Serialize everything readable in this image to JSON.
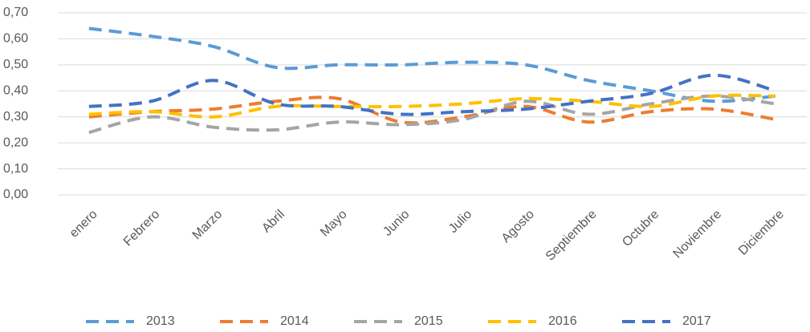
{
  "chart_data": {
    "type": "line",
    "categories": [
      "enero",
      "Febrero",
      "Marzo",
      "Abril",
      "Mayo",
      "Junio",
      "Julio",
      "Agosto",
      "Septiembre",
      "Octubre",
      "Noviembre",
      "Diciembre"
    ],
    "series": [
      {
        "name": "2013",
        "color": "#5b9bd5",
        "values": [
          0.64,
          0.61,
          0.57,
          0.49,
          0.5,
          0.5,
          0.51,
          0.5,
          0.44,
          0.4,
          0.36,
          0.38
        ]
      },
      {
        "name": "2014",
        "color": "#ed7d31",
        "values": [
          0.3,
          0.32,
          0.33,
          0.36,
          0.37,
          0.28,
          0.3,
          0.34,
          0.28,
          0.32,
          0.33,
          0.29
        ]
      },
      {
        "name": "2015",
        "color": "#a5a5a5",
        "values": [
          0.24,
          0.3,
          0.26,
          0.25,
          0.28,
          0.27,
          0.29,
          0.36,
          0.31,
          0.35,
          0.38,
          0.35
        ]
      },
      {
        "name": "2016",
        "color": "#ffc000",
        "values": [
          0.31,
          0.32,
          0.3,
          0.34,
          0.34,
          0.34,
          0.35,
          0.37,
          0.36,
          0.34,
          0.38,
          0.38
        ]
      },
      {
        "name": "2017",
        "color": "#4472c4",
        "values": [
          0.34,
          0.36,
          0.44,
          0.35,
          0.34,
          0.31,
          0.32,
          0.33,
          0.36,
          0.39,
          0.46,
          0.4
        ]
      }
    ],
    "ylim": [
      0,
      0.7
    ],
    "yticks": [
      {
        "value": 0,
        "label": "0,00"
      },
      {
        "value": 0.1,
        "label": "0,10"
      },
      {
        "value": 0.2,
        "label": "0,20"
      },
      {
        "value": 0.3,
        "label": "0,30"
      },
      {
        "value": 0.4,
        "label": "0,40"
      },
      {
        "value": 0.5,
        "label": "0,50"
      },
      {
        "value": 0.6,
        "label": "0,60"
      },
      {
        "value": 0.7,
        "label": "0,70"
      }
    ],
    "grid": true,
    "legend": "bottom"
  }
}
